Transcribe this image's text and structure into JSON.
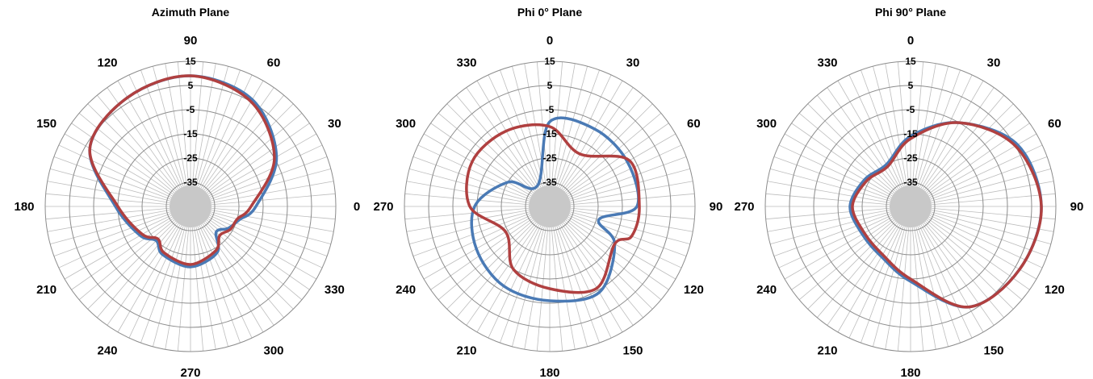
{
  "chart_data": [
    {
      "type": "polar-line",
      "title": "Azimuth Plane",
      "angle_labels": [
        "0",
        "30",
        "60",
        "90",
        "120",
        "150",
        "180",
        "210",
        "240",
        "270",
        "300",
        "330"
      ],
      "angle_zero_direction": "right",
      "angle_direction": "counterclockwise",
      "radial_ticks": [
        "15",
        "5",
        "-5",
        "-15",
        "-25",
        "-35"
      ],
      "rlim": [
        -45,
        15
      ],
      "grid": true,
      "series": [
        {
          "color": "#4a7ab5",
          "angles": [
            0,
            30,
            60,
            90,
            120,
            150,
            180,
            210,
            225,
            240,
            270,
            300,
            315,
            330,
            345
          ],
          "values": [
            -18,
            -4,
            6,
            9,
            7,
            3,
            -14,
            -21,
            -25,
            -22,
            -20,
            -23,
            -30,
            -27,
            -24
          ]
        },
        {
          "color": "#b04040",
          "angles": [
            0,
            30,
            60,
            90,
            120,
            150,
            180,
            210,
            225,
            240,
            270,
            300,
            315,
            330,
            345
          ],
          "values": [
            -20,
            -5,
            5,
            9,
            7,
            3,
            -15,
            -22,
            -26,
            -23,
            -21,
            -24,
            -28,
            -26,
            -25
          ]
        }
      ]
    },
    {
      "type": "polar-line",
      "title": "Phi 0° Plane",
      "angle_labels": [
        "0",
        "30",
        "60",
        "90",
        "120",
        "150",
        "180",
        "210",
        "240",
        "270",
        "300",
        "330"
      ],
      "angle_zero_direction": "top",
      "angle_direction": "clockwise",
      "radial_ticks": [
        "15",
        "5",
        "-5",
        "-15",
        "-25",
        "-35"
      ],
      "rlim": [
        -45,
        15
      ],
      "grid": true,
      "series": [
        {
          "color": "#4a7ab5",
          "angles": [
            0,
            30,
            60,
            90,
            105,
            120,
            150,
            180,
            210,
            240,
            270,
            300,
            330
          ],
          "values": [
            -10,
            -8,
            -8,
            -9,
            -24,
            -14,
            -4,
            -6,
            -7,
            -10,
            -14,
            -25,
            -35
          ]
        },
        {
          "color": "#b04040",
          "angles": [
            0,
            30,
            60,
            90,
            110,
            120,
            150,
            180,
            210,
            240,
            270,
            300,
            330
          ],
          "values": [
            -12,
            -20,
            -7,
            -8,
            -9,
            -14,
            -6,
            -11,
            -15,
            -24,
            -12,
            -8,
            -9
          ]
        }
      ]
    },
    {
      "type": "polar-line",
      "title": "Phi 90° Plane",
      "angle_labels": [
        "0",
        "30",
        "60",
        "90",
        "120",
        "150",
        "180",
        "210",
        "240",
        "270",
        "300",
        "330"
      ],
      "angle_zero_direction": "top",
      "angle_direction": "clockwise",
      "radial_ticks": [
        "15",
        "5",
        "-5",
        "-15",
        "-25",
        "-35"
      ],
      "rlim": [
        -45,
        15
      ],
      "grid": true,
      "series": [
        {
          "color": "#4a7ab5",
          "angles": [
            0,
            30,
            60,
            90,
            120,
            150,
            180,
            210,
            240,
            270,
            300,
            330
          ],
          "values": [
            -16,
            -5,
            6,
            9,
            7,
            3,
            -14,
            -21,
            -22,
            -20,
            -23,
            -25
          ]
        },
        {
          "color": "#b04040",
          "angles": [
            0,
            30,
            60,
            90,
            120,
            150,
            180,
            210,
            240,
            270,
            300,
            330
          ],
          "values": [
            -17,
            -5,
            5,
            9,
            7,
            3,
            -15,
            -22,
            -23,
            -21,
            -24,
            -26
          ]
        }
      ]
    }
  ]
}
